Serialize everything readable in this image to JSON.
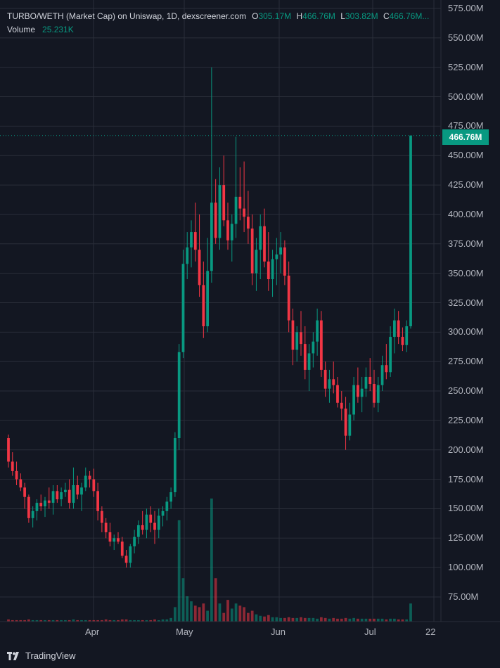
{
  "legend": {
    "title": "TURBO/WETH (Market Cap) on Uniswap, 1D, dexscreener.com",
    "open_label": "O",
    "open": "305.17M",
    "high_label": "H",
    "high": "466.76M",
    "low_label": "L",
    "low": "303.82M",
    "close_label": "C",
    "close": "466.76M...",
    "volume_label": "Volume",
    "volume": "25.231K"
  },
  "price_tag": "466.76M",
  "y_axis": [
    "575.00M",
    "550.00M",
    "525.00M",
    "500.00M",
    "475.00M",
    "450.00M",
    "425.00M",
    "400.00M",
    "375.00M",
    "350.00M",
    "325.00M",
    "300.00M",
    "275.00M",
    "250.00M",
    "225.00M",
    "200.00M",
    "175.00M",
    "150.00M",
    "125.00M",
    "100.00M",
    "75.00M"
  ],
  "x_axis": [
    "Apr",
    "May",
    "Jun",
    "Jul",
    "22"
  ],
  "brand": {
    "name": "TradingView",
    "icon": "tradingview-logo-icon"
  },
  "colors": {
    "up": "#089981",
    "down": "#f23645",
    "background": "#131722",
    "grid": "#2a2e39"
  },
  "chart_data": {
    "type": "candlestick",
    "ylim": [
      60,
      580
    ],
    "y_unit": "M",
    "candles_ohlc": [
      [
        210,
        213,
        185,
        190
      ],
      [
        190,
        198,
        178,
        182
      ],
      [
        182,
        190,
        170,
        175
      ],
      [
        175,
        180,
        165,
        168
      ],
      [
        168,
        172,
        150,
        160
      ],
      [
        160,
        162,
        138,
        142
      ],
      [
        142,
        152,
        134,
        148
      ],
      [
        148,
        158,
        140,
        155
      ],
      [
        155,
        162,
        148,
        152
      ],
      [
        152,
        160,
        143,
        157
      ],
      [
        157,
        168,
        150,
        155
      ],
      [
        155,
        170,
        145,
        165
      ],
      [
        165,
        170,
        155,
        158
      ],
      [
        158,
        168,
        152,
        164
      ],
      [
        164,
        172,
        160,
        166
      ],
      [
        166,
        175,
        150,
        155
      ],
      [
        155,
        185,
        150,
        170
      ],
      [
        170,
        178,
        158,
        162
      ],
      [
        162,
        172,
        148,
        168
      ],
      [
        168,
        185,
        165,
        178
      ],
      [
        178,
        182,
        168,
        175
      ],
      [
        175,
        184,
        160,
        165
      ],
      [
        165,
        172,
        140,
        148
      ],
      [
        148,
        152,
        130,
        138
      ],
      [
        138,
        142,
        125,
        130
      ],
      [
        130,
        138,
        118,
        122
      ],
      [
        122,
        128,
        115,
        125
      ],
      [
        125,
        130,
        120,
        122
      ],
      [
        122,
        126,
        108,
        110
      ],
      [
        110,
        115,
        100,
        104
      ],
      [
        104,
        120,
        100,
        118
      ],
      [
        118,
        132,
        112,
        126
      ],
      [
        126,
        140,
        120,
        136
      ],
      [
        136,
        148,
        128,
        132
      ],
      [
        132,
        150,
        125,
        145
      ],
      [
        145,
        152,
        130,
        138
      ],
      [
        138,
        148,
        120,
        132
      ],
      [
        132,
        150,
        125,
        144
      ],
      [
        144,
        152,
        135,
        148
      ],
      [
        148,
        160,
        140,
        156
      ],
      [
        156,
        168,
        150,
        164
      ],
      [
        164,
        215,
        160,
        210
      ],
      [
        210,
        290,
        200,
        283
      ],
      [
        283,
        370,
        278,
        358
      ],
      [
        358,
        385,
        345,
        372
      ],
      [
        372,
        395,
        355,
        385
      ],
      [
        385,
        410,
        360,
        370
      ],
      [
        370,
        400,
        330,
        340
      ],
      [
        340,
        360,
        295,
        305
      ],
      [
        305,
        380,
        300,
        352
      ],
      [
        352,
        525,
        342,
        410
      ],
      [
        410,
        430,
        375,
        380
      ],
      [
        380,
        440,
        370,
        425
      ],
      [
        425,
        450,
        390,
        395
      ],
      [
        395,
        410,
        370,
        378
      ],
      [
        378,
        400,
        360,
        392
      ],
      [
        392,
        466,
        380,
        415
      ],
      [
        415,
        440,
        395,
        405
      ],
      [
        405,
        445,
        385,
        398
      ],
      [
        398,
        420,
        375,
        388
      ],
      [
        388,
        400,
        340,
        350
      ],
      [
        350,
        380,
        335,
        370
      ],
      [
        370,
        400,
        345,
        390
      ],
      [
        390,
        405,
        355,
        360
      ],
      [
        360,
        385,
        335,
        345
      ],
      [
        345,
        370,
        330,
        362
      ],
      [
        362,
        380,
        340,
        366
      ],
      [
        366,
        385,
        350,
        372
      ],
      [
        372,
        378,
        340,
        348
      ],
      [
        348,
        360,
        300,
        310
      ],
      [
        310,
        320,
        272,
        285
      ],
      [
        285,
        305,
        275,
        300
      ],
      [
        300,
        318,
        280,
        290
      ],
      [
        290,
        305,
        260,
        268
      ],
      [
        268,
        290,
        250,
        282
      ],
      [
        282,
        300,
        270,
        292
      ],
      [
        292,
        320,
        280,
        310
      ],
      [
        310,
        318,
        262,
        268
      ],
      [
        268,
        275,
        245,
        252
      ],
      [
        252,
        268,
        240,
        260
      ],
      [
        260,
        275,
        248,
        255
      ],
      [
        255,
        262,
        236,
        240
      ],
      [
        240,
        250,
        225,
        235
      ],
      [
        235,
        245,
        200,
        212
      ],
      [
        212,
        240,
        208,
        230
      ],
      [
        230,
        262,
        225,
        255
      ],
      [
        255,
        270,
        240,
        245
      ],
      [
        245,
        262,
        232,
        252
      ],
      [
        252,
        270,
        245,
        262
      ],
      [
        262,
        278,
        250,
        256
      ],
      [
        256,
        268,
        236,
        240
      ],
      [
        240,
        262,
        232,
        255
      ],
      [
        255,
        280,
        250,
        272
      ],
      [
        272,
        290,
        260,
        266
      ],
      [
        266,
        305,
        262,
        296
      ],
      [
        296,
        320,
        282,
        310
      ],
      [
        310,
        318,
        290,
        296
      ],
      [
        296,
        304,
        284,
        289
      ],
      [
        289,
        310,
        283,
        305
      ],
      [
        305,
        467,
        303,
        467
      ]
    ],
    "volumes_k": [
      3,
      2,
      2,
      2,
      2,
      3,
      2,
      2,
      2,
      2,
      2,
      2,
      2,
      2,
      2,
      2,
      3,
      2,
      2,
      2,
      2,
      2,
      2,
      2,
      3,
      2,
      2,
      2,
      3,
      3,
      2,
      2,
      2,
      2,
      2,
      2,
      3,
      2,
      3,
      3,
      5,
      20,
      140,
      60,
      35,
      28,
      22,
      20,
      25,
      15,
      170,
      60,
      25,
      12,
      30,
      18,
      25,
      22,
      20,
      12,
      15,
      10,
      8,
      7,
      9,
      6,
      6,
      5,
      5,
      6,
      5,
      5,
      6,
      5,
      5,
      5,
      4,
      6,
      5,
      4,
      5,
      4,
      4,
      5,
      4,
      5,
      4,
      4,
      4,
      4,
      4,
      4,
      4,
      3,
      4,
      4,
      3,
      3,
      3,
      25
    ]
  }
}
